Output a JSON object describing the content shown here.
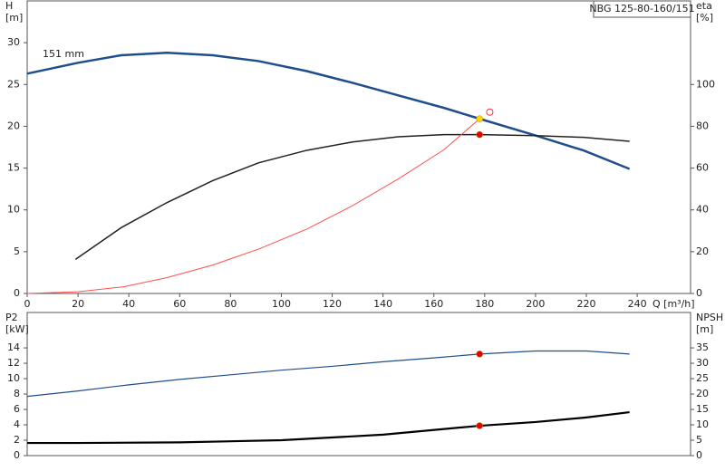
{
  "chart_data": [
    {
      "type": "line",
      "title": "NBG 125-80-160/151",
      "y_label": "H",
      "y_unit": "[m]",
      "y2_label": "eta",
      "y2_unit": "[%]",
      "x_label": "Q [m³/h]",
      "annotation": "151 mm",
      "xlim": [
        0,
        261
      ],
      "ylim": [
        0,
        35
      ],
      "y2lim": [
        0,
        140
      ],
      "xticks": [
        0,
        20,
        40,
        60,
        80,
        100,
        120,
        140,
        160,
        180,
        200,
        220,
        240
      ],
      "yticks": [
        0,
        5,
        10,
        15,
        20,
        25,
        30
      ],
      "y2ticks": [
        0,
        20,
        40,
        60,
        80,
        100
      ],
      "series": [
        {
          "color": "#1f4e8c",
          "width": 2.5,
          "style": "line",
          "x": [
            0,
            20,
            37,
            55,
            73,
            91,
            110,
            128,
            146,
            164,
            178,
            200,
            219,
            237
          ],
          "values": [
            26.3,
            27.6,
            28.5,
            28.8,
            28.5,
            27.8,
            26.6,
            25.2,
            23.7,
            22.2,
            20.9,
            18.9,
            17.1,
            14.9
          ]
        },
        {
          "color": "#222222",
          "width": 1.5,
          "style": "line",
          "axis": "y2",
          "x": [
            19,
            37,
            55,
            73,
            91,
            110,
            128,
            146,
            164,
            178,
            200,
            219,
            237
          ],
          "values": [
            16.3,
            31.5,
            43.5,
            54,
            62.5,
            68.5,
            72.5,
            75,
            76,
            76,
            75.5,
            74.7,
            72.8
          ]
        },
        {
          "color": "#ff5050",
          "width": 1,
          "style": "line",
          "x": [
            0,
            20,
            38,
            55,
            73,
            91,
            110,
            128,
            146,
            164,
            178
          ],
          "values": [
            0,
            0.2,
            0.8,
            1.9,
            3.4,
            5.3,
            7.7,
            10.5,
            13.7,
            17.2,
            20.9
          ]
        },
        {
          "color": "#ff3030",
          "style": "ring",
          "x": [
            182
          ],
          "values": [
            21.7
          ]
        },
        {
          "color": "#e60000",
          "style": "dot",
          "axis": "y2",
          "x": [
            178
          ],
          "values": [
            76
          ]
        },
        {
          "color": "#ffd700",
          "style": "dot",
          "x": [
            178
          ],
          "values": [
            20.9
          ]
        }
      ]
    },
    {
      "type": "line",
      "y_label": "P2",
      "y_unit": "[kW]",
      "y2_label": "NPSH",
      "y2_unit": "[m]",
      "xlim": [
        0,
        261
      ],
      "ylim": [
        0,
        18.6
      ],
      "y2lim": [
        0,
        46.5
      ],
      "yticks": [
        0,
        2,
        4,
        6,
        8,
        10,
        12,
        14
      ],
      "y2ticks": [
        0,
        5,
        10,
        15,
        20,
        25,
        30,
        35
      ],
      "series": [
        {
          "color": "#1f4e8c",
          "width": 1.2,
          "style": "line",
          "x": [
            0,
            20,
            40,
            60,
            80,
            100,
            120,
            140,
            160,
            178,
            200,
            220,
            237
          ],
          "values": [
            7.7,
            8.4,
            9.2,
            9.9,
            10.5,
            11.1,
            11.6,
            12.2,
            12.7,
            13.2,
            13.6,
            13.6,
            13.2
          ]
        },
        {
          "color": "#000000",
          "width": 2.2,
          "style": "line",
          "axis": "y2",
          "x": [
            0,
            20,
            60,
            100,
            140,
            178,
            200,
            220,
            237
          ],
          "values": [
            4.1,
            4.1,
            4.3,
            5.0,
            6.8,
            9.7,
            10.9,
            12.4,
            14.1
          ]
        },
        {
          "color": "#e60000",
          "style": "dot",
          "x": [
            178
          ],
          "values": [
            13.2
          ]
        },
        {
          "color": "#e60000",
          "style": "dot",
          "axis": "y2",
          "x": [
            178
          ],
          "values": [
            9.7
          ]
        }
      ]
    }
  ]
}
